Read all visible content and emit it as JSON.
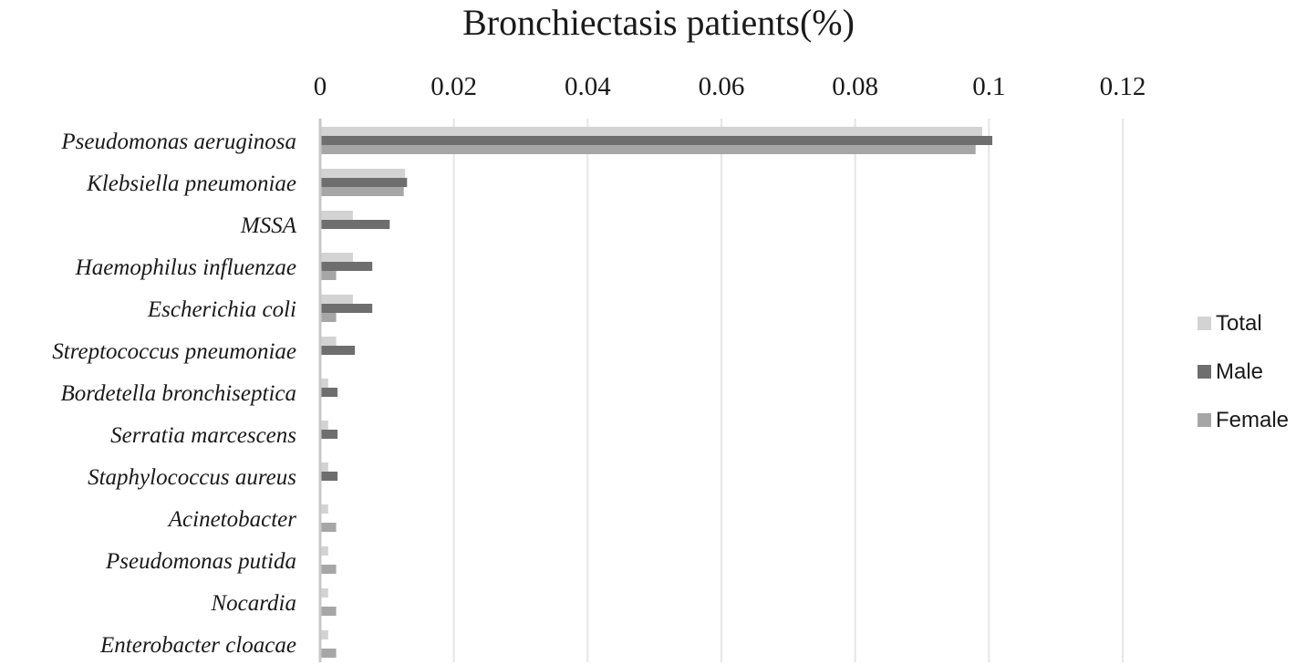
{
  "chart_data": {
    "type": "bar",
    "orientation": "horizontal",
    "title": "Bronchiectasis patients(%)",
    "xlabel": "",
    "ylabel": "",
    "xlim": [
      0,
      0.12
    ],
    "ticks": [
      "0",
      "0.02",
      "0.04",
      "0.06",
      "0.08",
      "0.1",
      "0.12"
    ],
    "tick_values": [
      0,
      0.02,
      0.04,
      0.06,
      0.08,
      0.1,
      0.12
    ],
    "grid": true,
    "legend_position": "right",
    "categories": [
      "Pseudomonas aeruginosa",
      "Klebsiella pneumoniae",
      "MSSA",
      "Haemophilus influenzae",
      "Escherichia coli",
      "Streptococcus pneumoniae",
      "Bordetella bronchiseptica",
      "Serratia marcescens",
      "Staphylococcus aureus",
      "Acinetobacter",
      "Pseudomonas putida",
      "Nocardia",
      "Enterobacter cloacae"
    ],
    "series": [
      {
        "name": "Total",
        "color": "#d3d3d3",
        "values": [
          0.099,
          0.0127,
          0.0049,
          0.0049,
          0.0049,
          0.0024,
          0.0012,
          0.0012,
          0.0012,
          0.0012,
          0.0012,
          0.0012,
          0.0012
        ]
      },
      {
        "name": "Male",
        "color": "#6e6e6e",
        "values": [
          0.1005,
          0.013,
          0.0104,
          0.0078,
          0.0078,
          0.0052,
          0.0026,
          0.0026,
          0.0026,
          0,
          0,
          0,
          0
        ]
      },
      {
        "name": "Female",
        "color": "#a6a6a6",
        "values": [
          0.098,
          0.0125,
          0,
          0.0024,
          0.0024,
          0,
          0,
          0,
          0,
          0.0024,
          0.0024,
          0.0024,
          0.0024
        ]
      }
    ]
  }
}
